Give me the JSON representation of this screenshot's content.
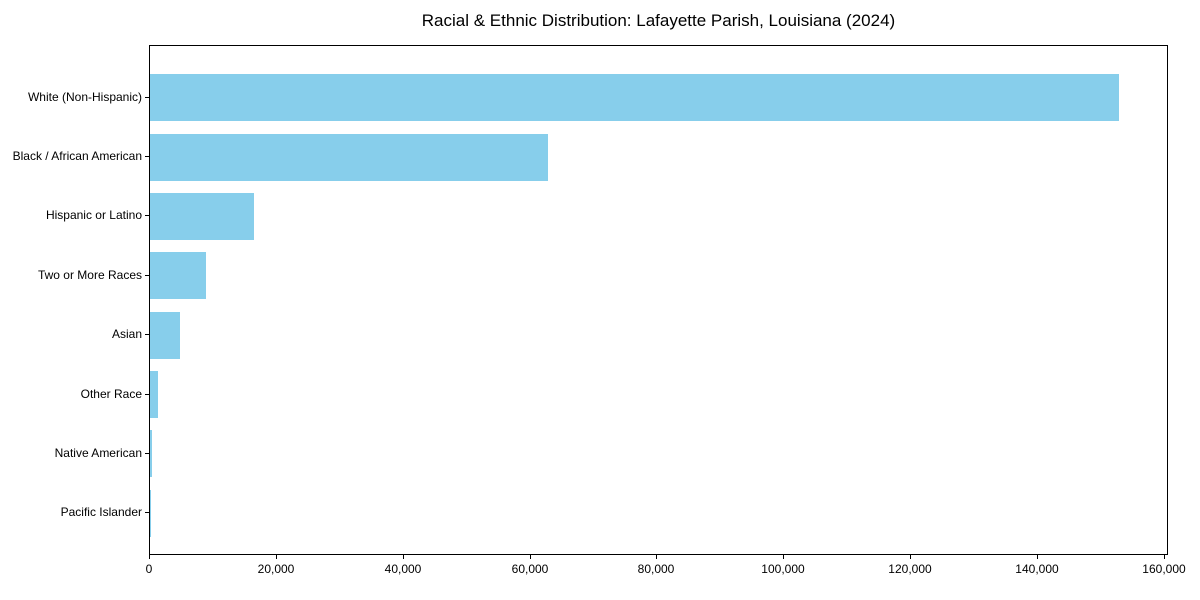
{
  "title": "Racial & Ethnic Distribution: Lafayette Parish, Louisiana (2024)",
  "colors": {
    "bar_fill": "#87CEEB",
    "axis": "#000000",
    "text": "#000000",
    "background": "#FFFFFF"
  },
  "chart_data": {
    "type": "bar",
    "orientation": "horizontal",
    "title": "Racial & Ethnic Distribution: Lafayette Parish, Louisiana (2024)",
    "categories": [
      "White (Non-Hispanic)",
      "Black / African American",
      "Hispanic or Latino",
      "Two or More Races",
      "Asian",
      "Other Race",
      "Native American",
      "Pacific Islander"
    ],
    "values": [
      153000,
      62900,
      16500,
      8800,
      4700,
      1200,
      250,
      50
    ],
    "xlabel": "",
    "ylabel": "",
    "xlim": [
      0,
      160650
    ],
    "xticks": [
      0,
      20000,
      40000,
      60000,
      80000,
      100000,
      120000,
      140000,
      160000
    ],
    "xtick_labels": [
      "0",
      "20,000",
      "40,000",
      "60,000",
      "80,000",
      "100,000",
      "120,000",
      "140,000",
      "160,000"
    ],
    "grid": false,
    "legend": "none",
    "bar_color": "#87CEEB"
  }
}
